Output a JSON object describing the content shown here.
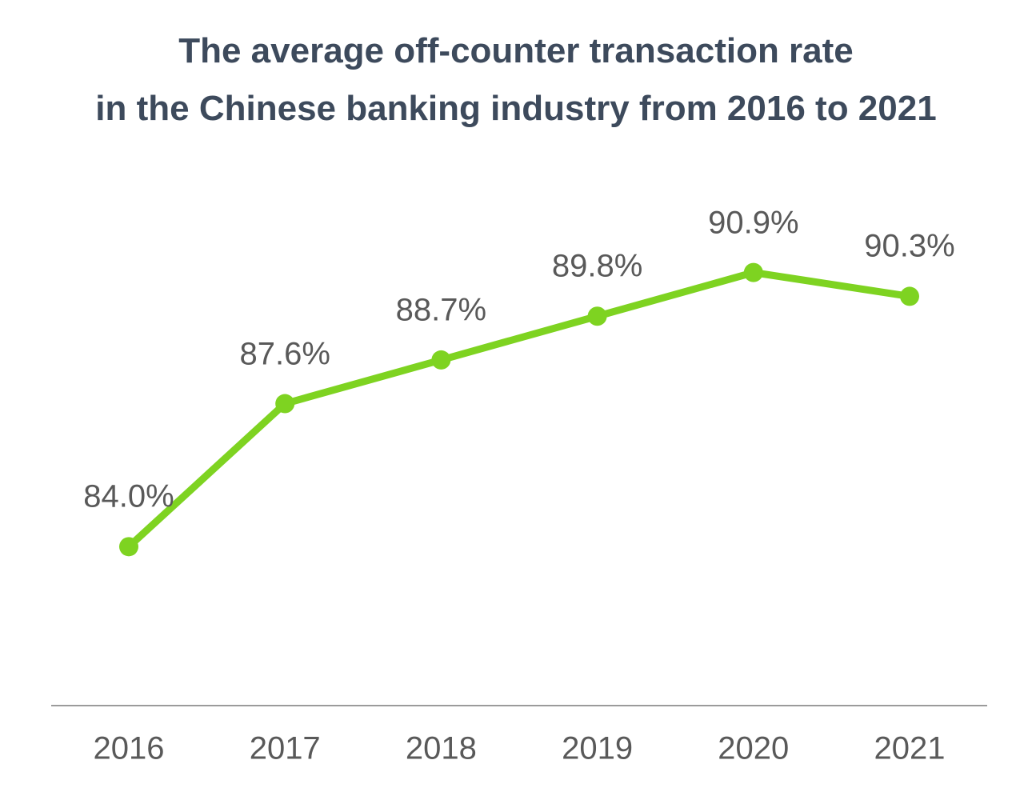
{
  "title": {
    "line1": "The average off-counter transaction rate",
    "line2": "in the Chinese banking industry from 2016 to 2021"
  },
  "chart_data": {
    "type": "line",
    "title": "The average off-counter transaction rate in the Chinese banking industry from 2016 to 2021",
    "categories": [
      "2016",
      "2017",
      "2018",
      "2019",
      "2020",
      "2021"
    ],
    "values": [
      84.0,
      87.6,
      88.7,
      89.8,
      90.9,
      90.3
    ],
    "point_labels": [
      "84.0%",
      "87.6%",
      "88.7%",
      "89.8%",
      "90.9%",
      "90.3%"
    ],
    "xlabel": "",
    "ylabel": "",
    "ylim": [
      80,
      92
    ],
    "grid": false,
    "legend": "none",
    "marker": "circle",
    "series_color": "#7ED321",
    "label_color": "#595959",
    "axis_color": "#9B9B9B"
  },
  "colors": {
    "title": "#3D4A5C",
    "background": "#FFFFFF"
  }
}
